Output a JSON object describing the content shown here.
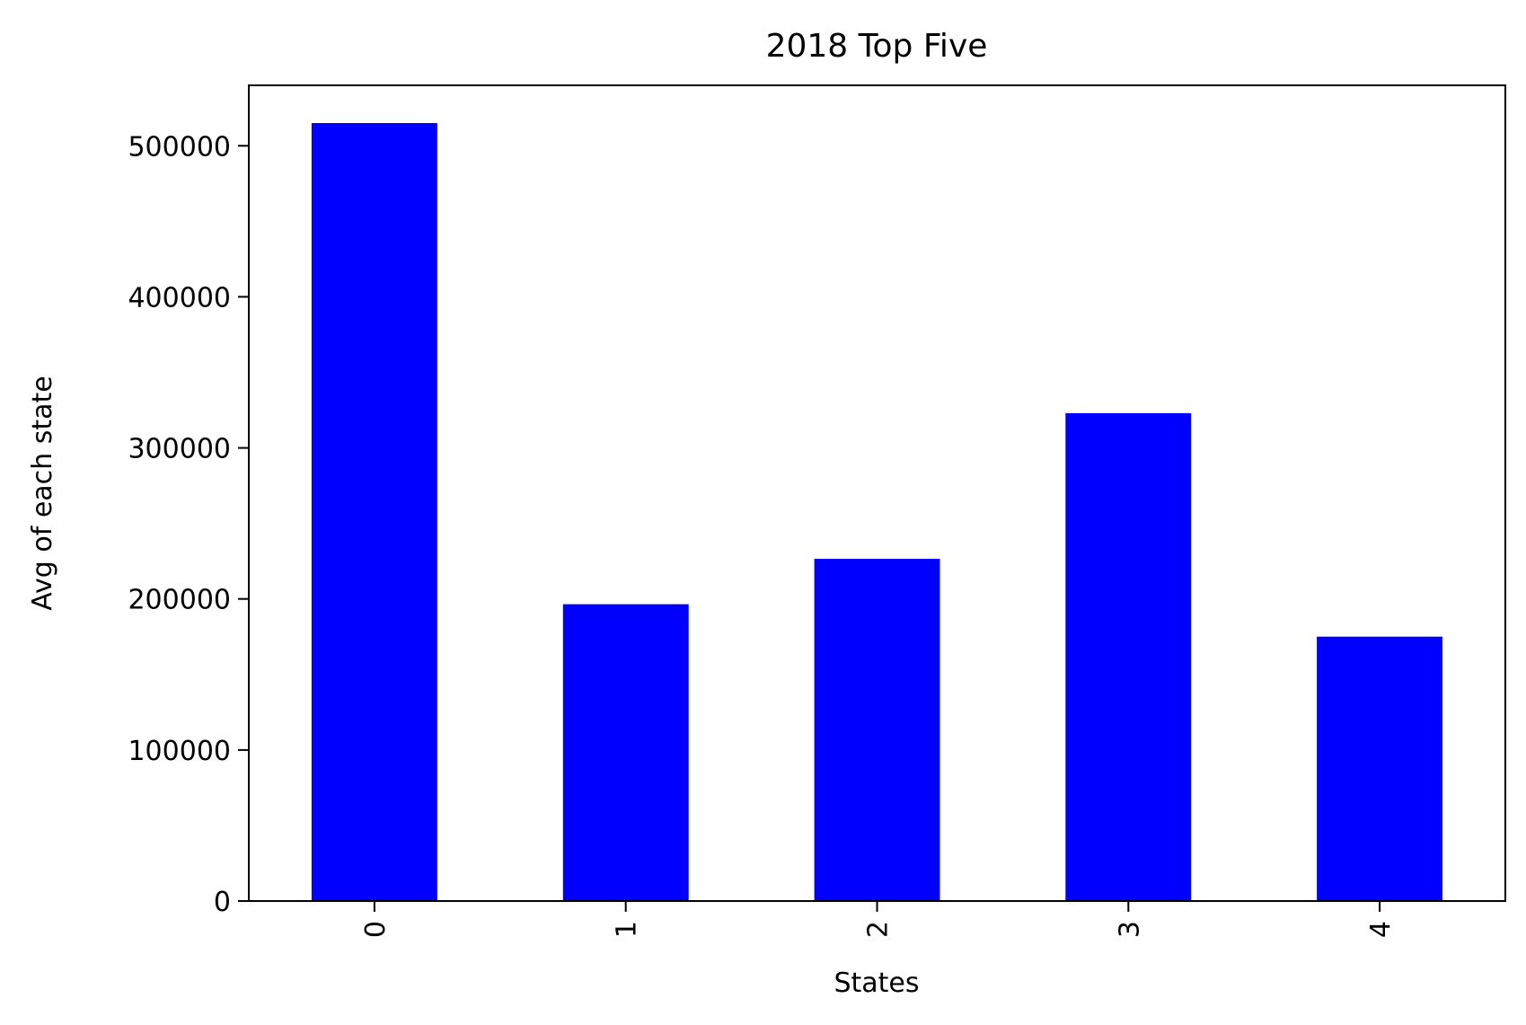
{
  "chart_data": {
    "type": "bar",
    "title": "2018 Top Five",
    "xlabel": "States",
    "ylabel": "Avg of each state",
    "categories": [
      "0",
      "1",
      "2",
      "3",
      "4"
    ],
    "values": [
      515000,
      196500,
      226500,
      323000,
      175000
    ],
    "ylim": [
      0,
      540000
    ],
    "yticks": [
      0,
      100000,
      200000,
      300000,
      400000,
      500000
    ],
    "ytick_labels": [
      "0",
      "100000",
      "200000",
      "300000",
      "400000",
      "500000"
    ],
    "bar_color": "#0000ff",
    "grid": false,
    "legend": false,
    "xtick_rotation": "vertical"
  }
}
